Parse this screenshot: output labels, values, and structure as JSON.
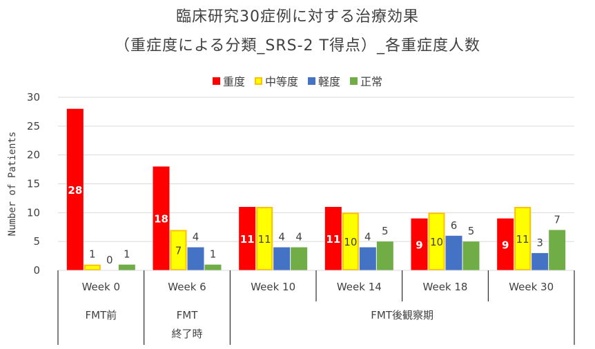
{
  "chart_data": {
    "type": "bar",
    "title": "臨床研究30症例に対する治療効果",
    "subtitle": "（重症度による分類_SRS-2 T得点）_各重症度人数",
    "ylabel": "Number of Patients",
    "ylim": [
      0,
      30
    ],
    "yticks": [
      0,
      5,
      10,
      15,
      20,
      25,
      30
    ],
    "grid": true,
    "legend_position": "top",
    "categories": [
      "Week 0",
      "Week 6",
      "Week 10",
      "Week 14",
      "Week 18",
      "Week 30"
    ],
    "groups": [
      {
        "label_lines": [
          "FMT前"
        ],
        "span": 1
      },
      {
        "label_lines": [
          "FMT",
          "終了時"
        ],
        "span": 1
      },
      {
        "label_lines": [
          "FMT後観察期"
        ],
        "span": 4
      }
    ],
    "series": [
      {
        "name": "重度",
        "color": "#ff0000",
        "border": "#ff0000",
        "values": [
          28,
          18,
          11,
          11,
          9,
          9
        ],
        "label_inside": true
      },
      {
        "name": "中等度",
        "color": "#ffff00",
        "border": "#ffc000",
        "values": [
          1,
          7,
          11,
          10,
          10,
          11
        ],
        "label_inside": true
      },
      {
        "name": "軽度",
        "color": "#4472c4",
        "border": "#4472c4",
        "values": [
          0,
          4,
          4,
          4,
          6,
          3
        ],
        "label_inside": false
      },
      {
        "name": "正常",
        "color": "#70ad47",
        "border": "#70ad47",
        "values": [
          1,
          1,
          4,
          5,
          5,
          7
        ],
        "label_inside": false
      }
    ]
  }
}
